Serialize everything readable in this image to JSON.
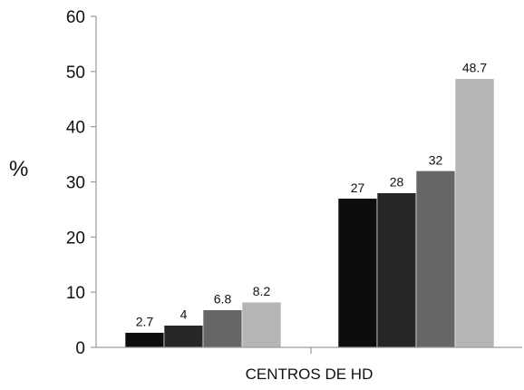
{
  "chart_data": {
    "type": "bar",
    "title": "",
    "xlabel": "CENTROS DE HD",
    "ylabel": "%",
    "ylim": [
      0,
      60
    ],
    "yticks": [
      0,
      10,
      20,
      30,
      40,
      50,
      60
    ],
    "grid": false,
    "groups": [
      {
        "values": [
          2.7,
          4,
          6.8,
          8.2
        ],
        "labels": [
          "2.7",
          "4",
          "6.8",
          "8.2"
        ]
      },
      {
        "values": [
          27,
          28,
          32,
          48.7
        ],
        "labels": [
          "27",
          "28",
          "32",
          "48.7"
        ]
      }
    ],
    "series_colors": [
      "#0d0d0d",
      "#262626",
      "#666666",
      "#b5b5b5"
    ]
  }
}
